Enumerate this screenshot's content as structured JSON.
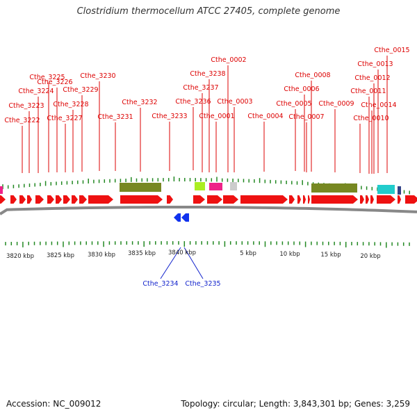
{
  "title": "Clostridium thermocellum ATCC 27405, complete genome",
  "footer": {
    "accession": "Accession: NC_009012",
    "stats": "Topology: circular; Length: 3,843,301 bp; Genes: 3,259"
  },
  "colors": {
    "forward_gene": "#ee1111",
    "reverse_gene": "#1133ee",
    "label_forward": "#dd0000",
    "label_reverse": "#1122cc",
    "tick": "#228822",
    "backbone": "#888888",
    "feature_olive": "#778822",
    "feature_magenta": "#ee2288",
    "feature_lime": "#aaee22",
    "feature_gray": "#cccccc",
    "feature_cyan": "#22cccc",
    "feature_navy": "#334488"
  },
  "scale_labels": [
    "3820 kbp",
    "3825 kbp",
    "3830 kbp",
    "3835 kbp",
    "3840 kbp",
    "5 kbp",
    "10 kbp",
    "15 kbp",
    "20 kbp"
  ],
  "gene_labels_forward": [
    "Cthe_0015",
    "Cthe_0002",
    "Cthe_0013",
    "Cthe_3226",
    "Cthe_3238",
    "Cthe_3230",
    "Cthe_0008",
    "Cthe_0012",
    "Cthe_3225",
    "Cthe_3237",
    "Cthe_3229",
    "Cthe_3224",
    "Cthe_0006",
    "Cthe_0011",
    "Cthe_3232",
    "Cthe_3236",
    "Cthe_0003",
    "Cthe_0005",
    "Cthe_0009",
    "Cthe_3223",
    "Cthe_3228",
    "Cthe_0014",
    "Cthe_3231",
    "Cthe_3233",
    "Cthe_0001",
    "Cthe_0004",
    "Cthe_0007",
    "Cthe_3222",
    "Cthe_3227",
    "Cthe_0010"
  ],
  "gene_labels_reverse": [
    "Cthe_3234",
    "Cthe_3235"
  ]
}
